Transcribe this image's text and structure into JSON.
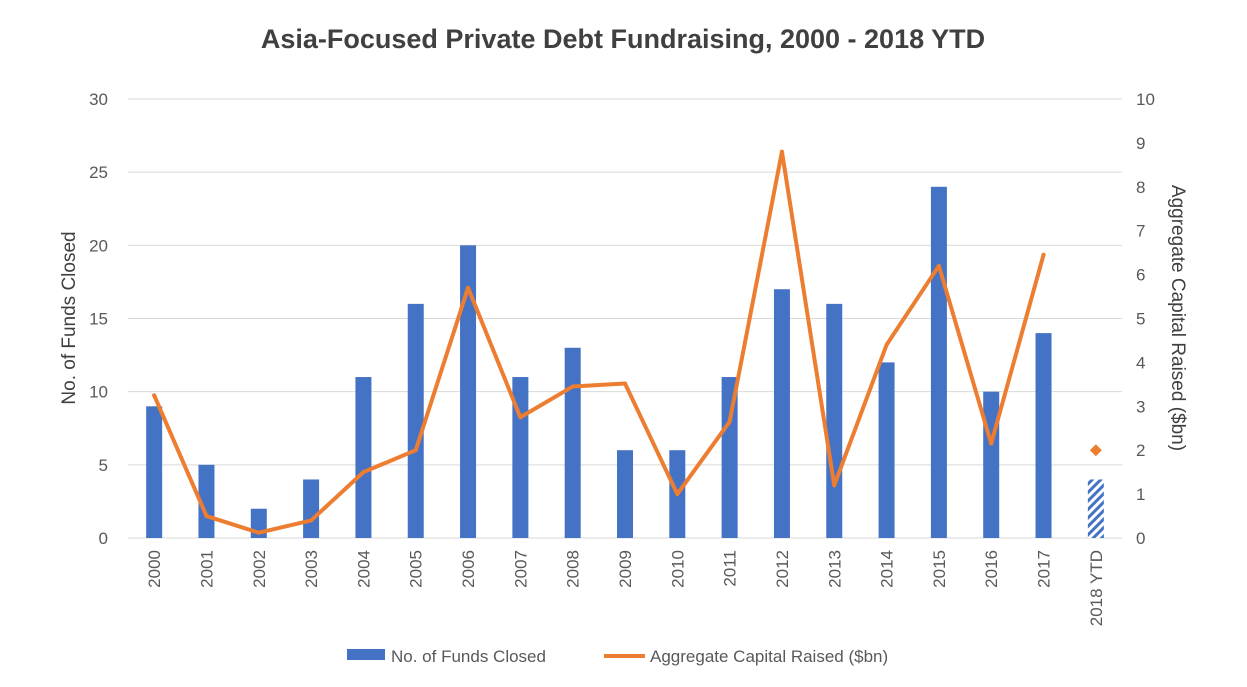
{
  "chart_data": {
    "type": "bar",
    "title": "Asia-Focused Private Debt Fundraising, 2000 - 2018 YTD",
    "categories": [
      "2000",
      "2001",
      "2002",
      "2003",
      "2004",
      "2005",
      "2006",
      "2007",
      "2008",
      "2009",
      "2010",
      "2011",
      "2012",
      "2013",
      "2014",
      "2015",
      "2016",
      "2017",
      "2018 YTD"
    ],
    "series": [
      {
        "name": "No. of Funds Closed",
        "type": "bar",
        "axis": "left",
        "color": "#4472c4",
        "values": [
          9,
          5,
          2,
          4,
          11,
          16,
          20,
          11,
          13,
          6,
          6,
          11,
          17,
          16,
          12,
          24,
          10,
          14,
          4
        ],
        "hatched_categories": [
          "2018 YTD"
        ]
      },
      {
        "name": "Aggregate Capital Raised ($bn)",
        "type": "line",
        "axis": "right",
        "color": "#ed7d31",
        "values": [
          3.25,
          0.5,
          0.12,
          0.4,
          1.5,
          2.0,
          5.7,
          2.75,
          3.45,
          3.52,
          1.0,
          2.65,
          8.8,
          1.2,
          4.4,
          6.2,
          2.15,
          6.45,
          null
        ],
        "marker_values": {
          "2018 YTD": 2.0
        }
      }
    ],
    "ylabel_left": "No. of Funds Closed",
    "ylabel_right": "Aggregate Capital Raised ($bn)",
    "ylim_left": [
      0,
      30
    ],
    "ylim_right": [
      0,
      10
    ],
    "yticks_left": [
      0,
      5,
      10,
      15,
      20,
      25,
      30
    ],
    "yticks_right": [
      0,
      1,
      2,
      3,
      4,
      5,
      6,
      7,
      8,
      9,
      10
    ],
    "grid": true,
    "legend_position": "bottom"
  }
}
